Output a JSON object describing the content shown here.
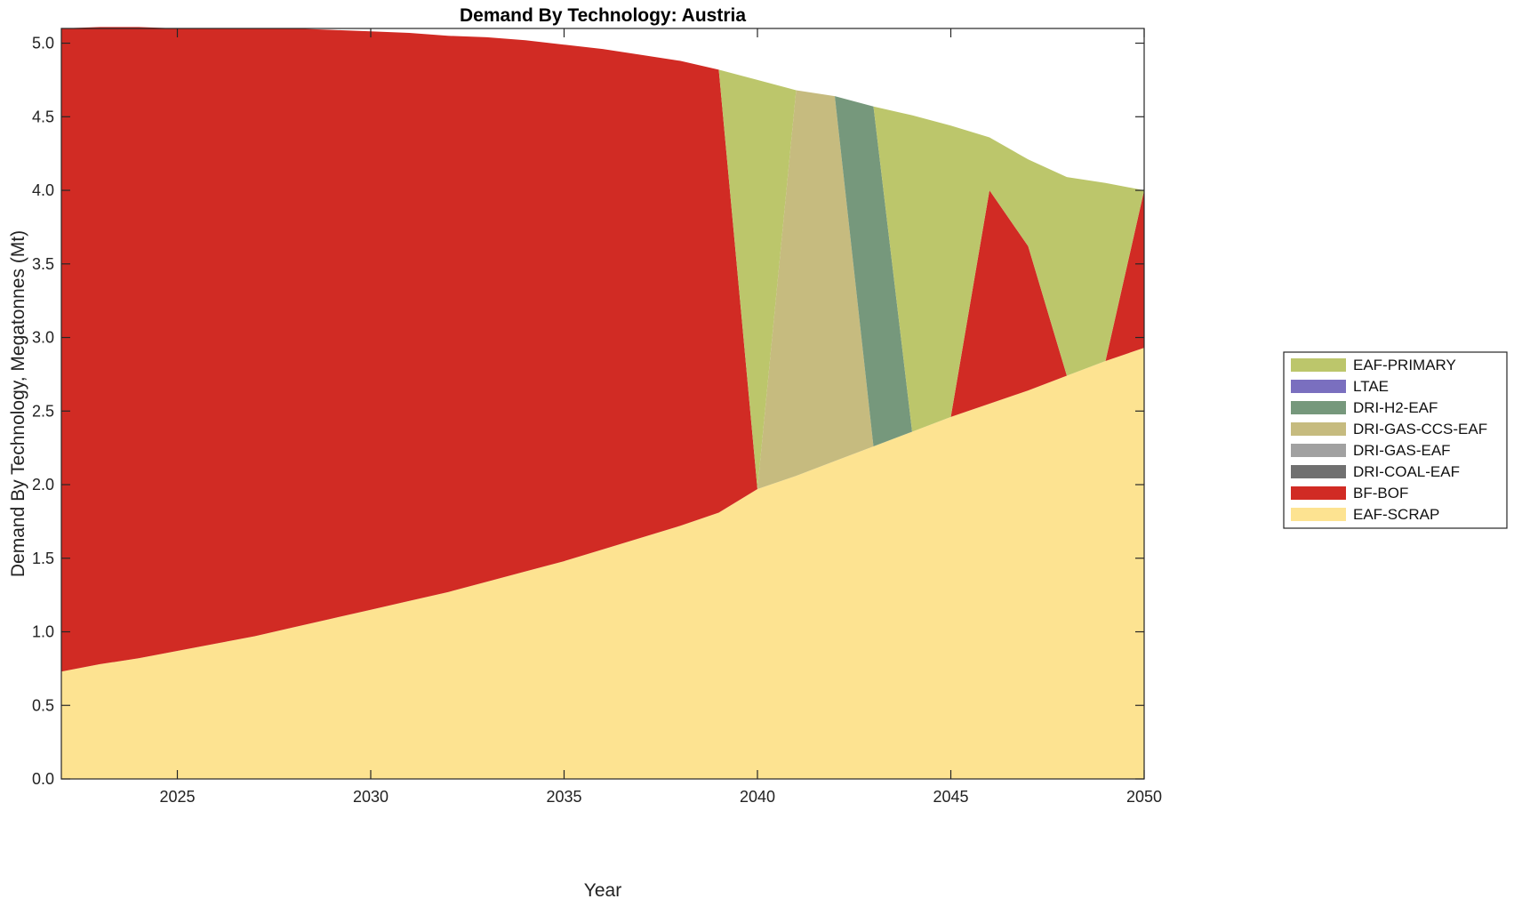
{
  "chart_data": {
    "type": "area",
    "title": "Demand By Technology: Austria",
    "xlabel": "Year",
    "ylabel": "Demand By Technology, Megatonnes (Mt)",
    "xlim": [
      2022,
      2050
    ],
    "ylim": [
      0,
      5.1
    ],
    "xticks": [
      2025,
      2030,
      2035,
      2040,
      2045,
      2050
    ],
    "xtick_labels": [
      "2025",
      "2030",
      "2035",
      "2040",
      "2045",
      "2050"
    ],
    "yticks": [
      0,
      0.5,
      1.0,
      1.5,
      2.0,
      2.5,
      3.0,
      3.5,
      4.0,
      4.5,
      5.0
    ],
    "ytick_labels": [
      "0.0",
      "0.5",
      "1.0",
      "1.5",
      "2.0",
      "2.5",
      "3.0",
      "3.5",
      "4.0",
      "4.5",
      "5.0"
    ],
    "grid": false,
    "legend_position": "right",
    "legend": [
      {
        "label": "EAF-PRIMARY",
        "color": "#bcc66b"
      },
      {
        "label": "LTAE",
        "color": "#7a6fbf"
      },
      {
        "label": "DRI-H2-EAF",
        "color": "#76987c"
      },
      {
        "label": "DRI-GAS-CCS-EAF",
        "color": "#c6bb7f"
      },
      {
        "label": "DRI-GAS-EAF",
        "color": "#a1a1a1"
      },
      {
        "label": "DRI-COAL-EAF",
        "color": "#707070"
      },
      {
        "label": "BF-BOF",
        "color": "#d12b24"
      },
      {
        "label": "EAF-SCRAP",
        "color": "#fde391"
      }
    ],
    "x": [
      2022,
      2023,
      2024,
      2025,
      2026,
      2027,
      2028,
      2029,
      2030,
      2031,
      2032,
      2033,
      2034,
      2035,
      2036,
      2037,
      2038,
      2039,
      2040,
      2041,
      2042,
      2043,
      2044,
      2045,
      2046,
      2047,
      2048,
      2049,
      2050
    ],
    "series": [
      {
        "name": "EAF-SCRAP",
        "color": "#fde391",
        "values": [
          0.73,
          0.78,
          0.82,
          0.87,
          0.92,
          0.97,
          1.03,
          1.09,
          1.15,
          1.21,
          1.27,
          1.34,
          1.41,
          1.48,
          1.56,
          1.64,
          1.72,
          1.81,
          1.97,
          2.06,
          2.16,
          2.26,
          2.36,
          2.46,
          2.55,
          2.64,
          2.74,
          2.84,
          2.93
        ]
      },
      {
        "name": "BF-BOF",
        "color": "#d12b24",
        "values": [
          4.37,
          4.33,
          4.29,
          4.23,
          4.18,
          4.13,
          4.07,
          4.0,
          3.93,
          3.86,
          3.78,
          3.7,
          3.61,
          3.51,
          3.4,
          3.28,
          3.16,
          3.01,
          0.0,
          0.0,
          0.0,
          0.0,
          0.0,
          0.0,
          1.45,
          0.98,
          0.0,
          0.0,
          1.07
        ]
      },
      {
        "name": "DRI-COAL-EAF",
        "color": "#707070",
        "values": [
          0,
          0,
          0,
          0,
          0,
          0,
          0,
          0,
          0,
          0,
          0,
          0,
          0,
          0,
          0,
          0,
          0,
          0,
          0,
          0,
          0,
          0,
          0,
          0,
          0,
          0,
          0,
          0,
          0
        ]
      },
      {
        "name": "DRI-GAS-EAF",
        "color": "#a1a1a1",
        "values": [
          0,
          0,
          0,
          0,
          0,
          0,
          0,
          0,
          0,
          0,
          0,
          0,
          0,
          0,
          0,
          0,
          0,
          0,
          0,
          0,
          0,
          0,
          0,
          0,
          0,
          0,
          0,
          0,
          0
        ]
      },
      {
        "name": "DRI-GAS-CCS-EAF",
        "color": "#c6bb7f",
        "values": [
          0,
          0,
          0,
          0,
          0,
          0,
          0,
          0,
          0,
          0,
          0,
          0,
          0,
          0,
          0,
          0,
          0,
          0,
          0.0,
          2.62,
          2.48,
          0.0,
          0.0,
          0.0,
          0,
          0,
          0,
          0,
          0
        ]
      },
      {
        "name": "DRI-H2-EAF",
        "color": "#76987c",
        "values": [
          0,
          0,
          0,
          0,
          0,
          0,
          0,
          0,
          0,
          0,
          0,
          0,
          0,
          0,
          0,
          0,
          0,
          0,
          0.0,
          0.0,
          0.0,
          2.31,
          0.0,
          0.0,
          0,
          0,
          0,
          0,
          0
        ]
      },
      {
        "name": "LTAE",
        "color": "#7a6fbf",
        "values": [
          0,
          0,
          0,
          0,
          0,
          0,
          0,
          0,
          0,
          0,
          0,
          0,
          0,
          0,
          0,
          0,
          0,
          0,
          0,
          0,
          0,
          0,
          0,
          0,
          0,
          0,
          0,
          0,
          0
        ]
      },
      {
        "name": "EAF-PRIMARY",
        "color": "#bcc66b",
        "values": [
          0,
          0,
          0,
          0,
          0,
          0,
          0,
          0,
          0,
          0,
          0,
          0,
          0,
          0,
          0,
          0,
          0,
          0,
          2.78,
          0.0,
          0.0,
          0.0,
          2.15,
          1.98,
          0.36,
          0.59,
          1.35,
          1.21,
          0.0
        ]
      }
    ]
  }
}
